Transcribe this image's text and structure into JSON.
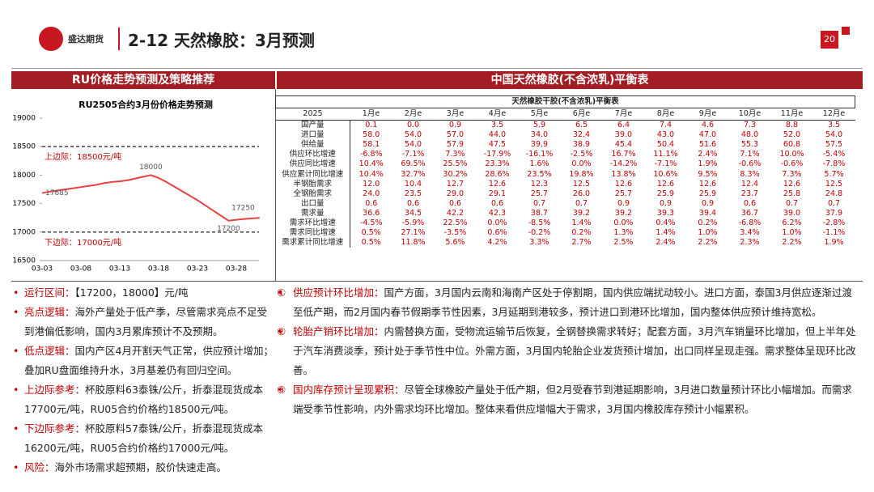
{
  "header": {
    "logo": "盛达期货",
    "title": "2-12 天然橡胶：3月预测",
    "page": "20"
  },
  "left_title": "RU价格走势预测及策略推荐",
  "right_title": "中国天然橡胶(不含浓乳)平衡表",
  "chart_data": {
    "type": "line",
    "title": "RU2505合约3月份价格走势预测",
    "categories": [
      "03-03",
      null,
      null,
      null,
      null,
      "03-08",
      null,
      null,
      null,
      null,
      "03-13",
      null,
      null,
      null,
      null,
      "03-18",
      null,
      null,
      null,
      null,
      "03-23",
      null,
      null,
      null,
      null,
      "03-28",
      null,
      null,
      null
    ],
    "series": [
      {
        "name": "RU2505",
        "color": "#e8433f",
        "values": [
          17685,
          17710,
          17730,
          17750,
          17770,
          17790,
          17810,
          17830,
          17860,
          17880,
          17890,
          17910,
          17940,
          17970,
          18000,
          17950,
          17880,
          17800,
          17720,
          17640,
          17560,
          17470,
          17380,
          17290,
          17200,
          17215,
          17230,
          17240,
          17250
        ]
      }
    ],
    "labeled_points": [
      0,
      14,
      24,
      28
    ],
    "ylim": [
      16500,
      19000
    ],
    "yticks": [
      16500,
      17000,
      17500,
      18000,
      18500,
      19000
    ],
    "annotations": [
      {
        "text": "上边际：18500元/吨",
        "value": 18500
      },
      {
        "text": "下边际：17000元/吨",
        "value": 17000
      }
    ]
  },
  "table": {
    "title": "天然橡胶干胶(不含浓乳)平衡表",
    "header": [
      "2025",
      "1月e",
      "2月e",
      "3月e",
      "4月e",
      "5月e",
      "6月e",
      "7月e",
      "8月e",
      "9月e",
      "10月e",
      "11月e",
      "12月e"
    ],
    "rows": [
      [
        "国产量",
        "0.1",
        "0.0",
        "0.9",
        "3.5",
        "5.9",
        "6.5",
        "6.4",
        "7.4",
        "4.6",
        "7.3",
        "8.8",
        "3.5"
      ],
      [
        "进口量",
        "58.0",
        "54.0",
        "57.0",
        "44.0",
        "34.0",
        "32.4",
        "39.0",
        "43.0",
        "47.0",
        "48.0",
        "52.0",
        "54.0"
      ],
      [
        "供给量",
        "58.1",
        "54.0",
        "57.9",
        "47.5",
        "39.9",
        "38.9",
        "45.4",
        "50.4",
        "51.6",
        "55.3",
        "60.8",
        "57.5"
      ],
      [
        "供应环比增速",
        "-6.8%",
        "-7.1%",
        "7.3%",
        "-17.9%",
        "-16.1%",
        "-2.5%",
        "16.7%",
        "11.1%",
        "2.4%",
        "7.1%",
        "10.0%",
        "-5.4%"
      ],
      [
        "供应同比增速",
        "10.4%",
        "69.5%",
        "25.5%",
        "23.3%",
        "1.6%",
        "0.0%",
        "-14.2%",
        "-7.1%",
        "1.9%",
        "-0.6%",
        "-0.6%",
        "-7.8%"
      ],
      [
        "供应累计同比增速",
        "10.4%",
        "32.7%",
        "30.2%",
        "28.6%",
        "23.5%",
        "19.8%",
        "13.8%",
        "10.6%",
        "9.5%",
        "8.3%",
        "7.3%",
        "5.7%"
      ],
      [
        "半钢胎需求",
        "12.0",
        "10.4",
        "12.7",
        "12.6",
        "12.3",
        "12.5",
        "12.6",
        "12.6",
        "12.6",
        "12.4",
        "12.6",
        "12.5"
      ],
      [
        "全钢胎需求",
        "24.0",
        "23.5",
        "29.0",
        "29.1",
        "25.7",
        "26.0",
        "25.7",
        "25.9",
        "25.9",
        "23.7",
        "25.8",
        "24.8"
      ],
      [
        "出口量",
        "0.6",
        "0.6",
        "0.6",
        "0.6",
        "0.7",
        "0.7",
        "0.9",
        "0.9",
        "0.9",
        "0.6",
        "0.7",
        "0.7"
      ],
      [
        "需求量",
        "36.6",
        "34.5",
        "42.2",
        "42.3",
        "38.7",
        "39.2",
        "39.2",
        "39.3",
        "39.4",
        "36.7",
        "39.0",
        "37.9"
      ],
      [
        "需求环比增速",
        "-4.5%",
        "-5.9%",
        "22.5%",
        "0.0%",
        "-8.5%",
        "1.4%",
        "0.0%",
        "0.4%",
        "0.2%",
        "-6.8%",
        "6.2%",
        "-2.8%"
      ],
      [
        "需求同比增速",
        "0.5%",
        "27.1%",
        "-3.5%",
        "0.6%",
        "-0.2%",
        "0.2%",
        "1.3%",
        "1.4%",
        "1.0%",
        "3.4%",
        "1.0%",
        "-1.1%"
      ],
      [
        "需求累计同比增速",
        "0.5%",
        "11.8%",
        "5.6%",
        "4.2%",
        "3.3%",
        "2.7%",
        "2.5%",
        "2.4%",
        "2.2%",
        "2.3%",
        "2.2%",
        "1.9%"
      ]
    ]
  },
  "bullets": [
    {
      "label": "运行区间：",
      "text": "【17200，18000】元/吨"
    },
    {
      "label": "亮点逻辑：",
      "text": "海外产量处于低产季，尽管需求亮点不足受到港偏低影响，国内3月累库预计不及预期。"
    },
    {
      "label": "低点逻辑：",
      "text": "国内产区4月开割天气正常，供应预计增加；叠加RU盘面维持升水，3月基差仍有回归空间。"
    },
    {
      "label": "上边际参考：",
      "text": "杯胶原料63泰铢/公斤，折泰混现货成本17700元/吨，RU05合约价格约18500元/吨。"
    },
    {
      "label": "下边际参考：",
      "text": "杯胶原料57泰铢/公斤，折泰混现货成本16200元/吨，RU05合约价格约17000元/吨。"
    },
    {
      "label": "风险：",
      "text": "海外市场需求超预期，胶价快速走高。"
    }
  ],
  "notes": [
    {
      "num": "①",
      "label": "供应预计环比增加：",
      "text": "国产方面，3月国内云南和海南产区处于停割期，国内供应端扰动较小。进口方面，泰国3月供应逐渐过渡至低产期，而2月国内春节假期季节性因素，3月延期到港较多，预计进口到港环比增加，国内整体供应预计维持宽松。"
    },
    {
      "num": "②",
      "label": "轮胎产销环比增加：",
      "text": "内需替换方面，受物流运输节后恢复，全钢替换需求转好；配套方面，3月汽车销量环比增加，但上半年处于汽车消费淡季，预计处于季节性中位。外需方面，3月国内轮胎企业发货预计增加，出口同样呈现走强。需求整体呈现环比改善。"
    },
    {
      "num": "③",
      "label": "国内库存预计呈现累积：",
      "text": "尽管全球橡胶产量处于低产期，但2月受春节到港延期影响，3月进口数量预计环比小幅增加。而需求端受季节性影响，内外需求均环比增加。整体来看供应增幅大于需求，3月国内橡胶库存预计小幅累积。"
    }
  ]
}
